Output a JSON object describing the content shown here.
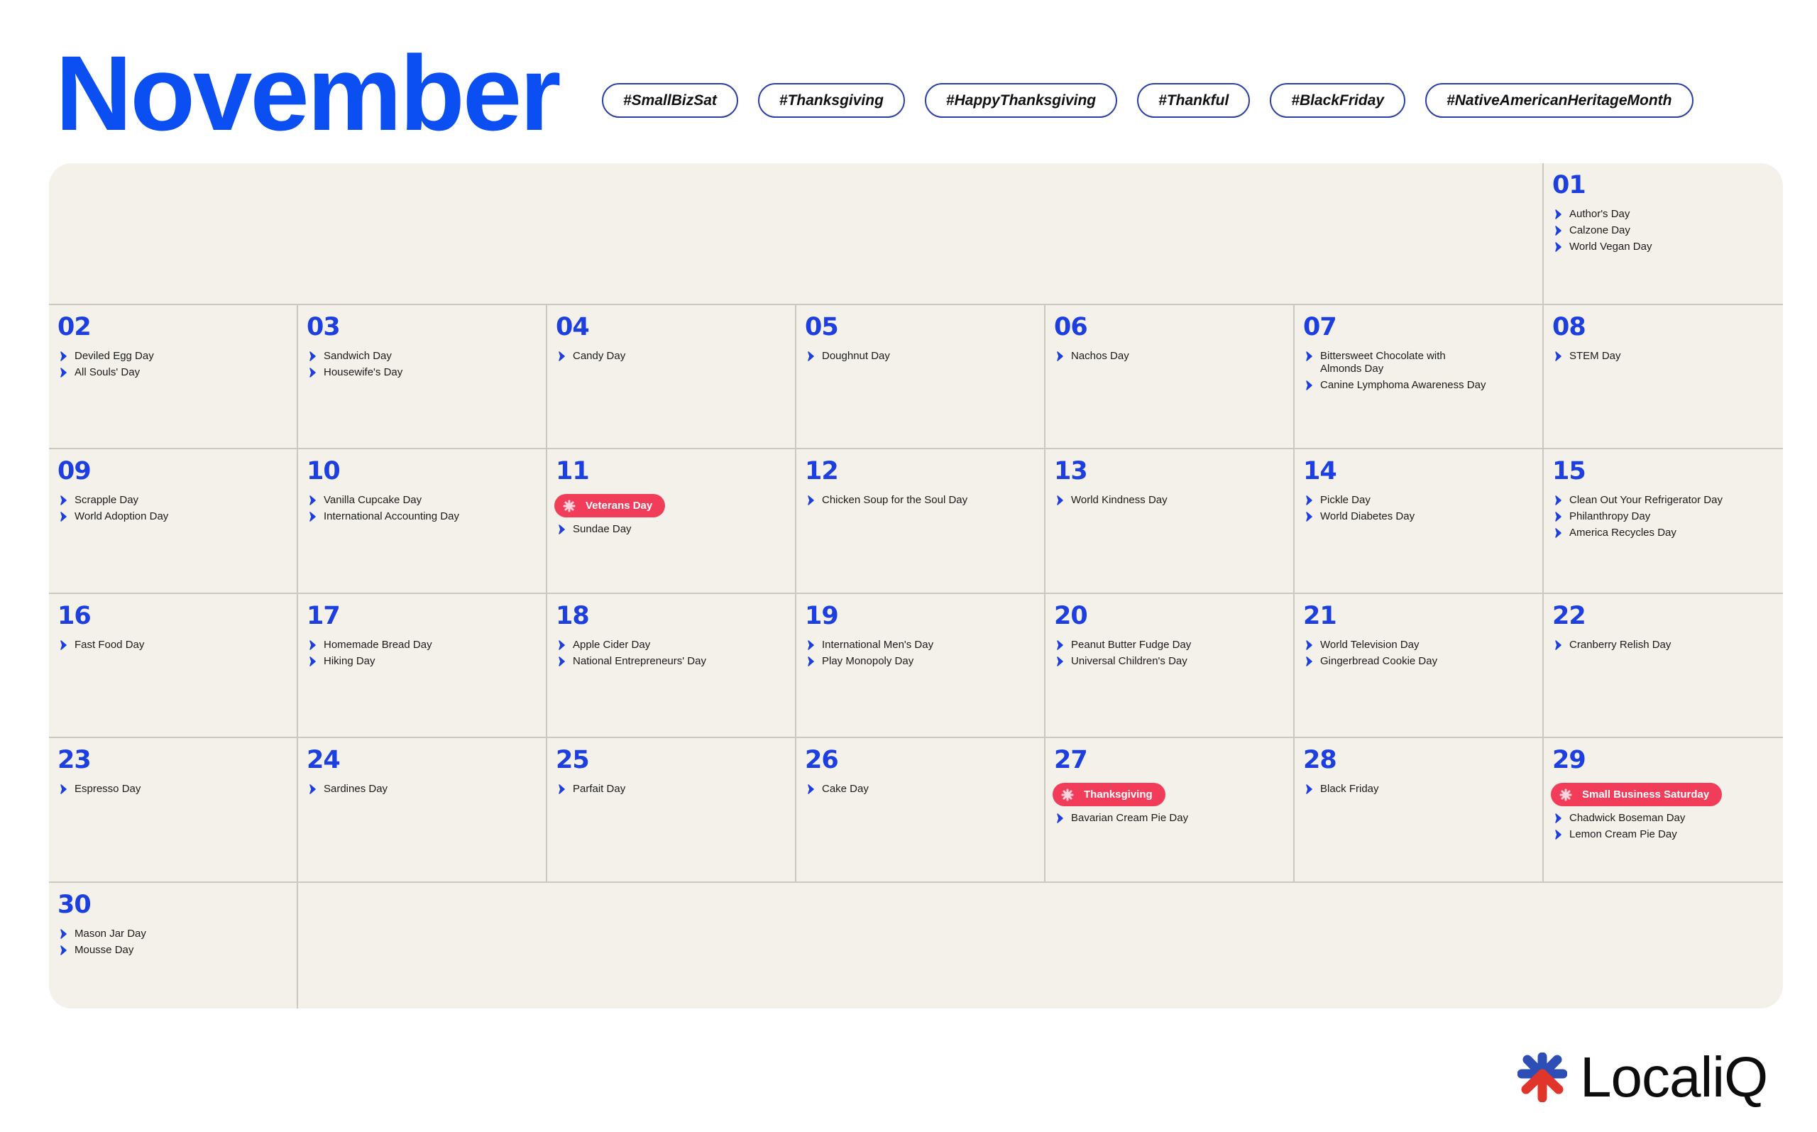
{
  "header": {
    "title": "November",
    "hashtags": [
      "#SmallBizSat",
      "#Thanksgiving",
      "#HappyThanksgiving",
      "#Thankful",
      "#BlackFriday",
      "#NativeAmericanHeritageMonth"
    ]
  },
  "colors": {
    "title": "#0b4ff2",
    "day_number": "#1d3fe0",
    "holiday_badge": "#f23d5a",
    "calendar_bg": "#f3f1e9"
  },
  "calendar": {
    "days": [
      {
        "num": "01",
        "events": [
          "Author's Day",
          "Calzone Day",
          "World Vegan Day"
        ]
      },
      {
        "num": "02",
        "events": [
          "Deviled Egg Day",
          "All Souls' Day"
        ]
      },
      {
        "num": "03",
        "events": [
          "Sandwich Day",
          "Housewife's Day"
        ]
      },
      {
        "num": "04",
        "events": [
          "Candy Day"
        ]
      },
      {
        "num": "05",
        "events": [
          "Doughnut Day"
        ]
      },
      {
        "num": "06",
        "events": [
          "Nachos Day"
        ]
      },
      {
        "num": "07",
        "events": [
          "Bittersweet Chocolate with Almonds Day",
          "Canine Lymphoma Awareness Day"
        ]
      },
      {
        "num": "08",
        "events": [
          "STEM Day"
        ]
      },
      {
        "num": "09",
        "events": [
          "Scrapple Day",
          "World Adoption Day"
        ]
      },
      {
        "num": "10",
        "events": [
          "Vanilla Cupcake Day",
          "International Accounting Day"
        ]
      },
      {
        "num": "11",
        "holiday": "Veterans Day",
        "events": [
          "Sundae Day"
        ]
      },
      {
        "num": "12",
        "events": [
          "Chicken Soup for the Soul Day"
        ]
      },
      {
        "num": "13",
        "events": [
          "World Kindness Day"
        ]
      },
      {
        "num": "14",
        "events": [
          "Pickle Day",
          "World Diabetes Day"
        ]
      },
      {
        "num": "15",
        "events": [
          "Clean Out Your Refrigerator Day",
          "Philanthropy Day",
          "America Recycles Day"
        ]
      },
      {
        "num": "16",
        "events": [
          "Fast Food Day"
        ]
      },
      {
        "num": "17",
        "events": [
          "Homemade Bread Day",
          "Hiking Day"
        ]
      },
      {
        "num": "18",
        "events": [
          "Apple Cider Day",
          "National Entrepreneurs' Day"
        ]
      },
      {
        "num": "19",
        "events": [
          "International Men's Day",
          "Play Monopoly Day"
        ]
      },
      {
        "num": "20",
        "events": [
          "Peanut Butter Fudge Day",
          "Universal Children's Day"
        ]
      },
      {
        "num": "21",
        "events": [
          "World Television Day",
          "Gingerbread Cookie Day"
        ]
      },
      {
        "num": "22",
        "events": [
          "Cranberry Relish Day"
        ]
      },
      {
        "num": "23",
        "events": [
          "Espresso Day"
        ]
      },
      {
        "num": "24",
        "events": [
          "Sardines Day"
        ]
      },
      {
        "num": "25",
        "events": [
          "Parfait Day"
        ]
      },
      {
        "num": "26",
        "events": [
          "Cake Day"
        ]
      },
      {
        "num": "27",
        "holiday": "Thanksgiving",
        "events": [
          "Bavarian Cream Pie Day"
        ]
      },
      {
        "num": "28",
        "events": [
          "Black Friday"
        ]
      },
      {
        "num": "29",
        "holiday": "Small Business Saturday",
        "events": [
          "Chadwick Boseman Day",
          "Lemon Cream Pie Day"
        ]
      },
      {
        "num": "30",
        "events": [
          "Mason Jar Day",
          "Mousse Day"
        ]
      }
    ]
  },
  "logo": {
    "text": "LocaliQ"
  }
}
